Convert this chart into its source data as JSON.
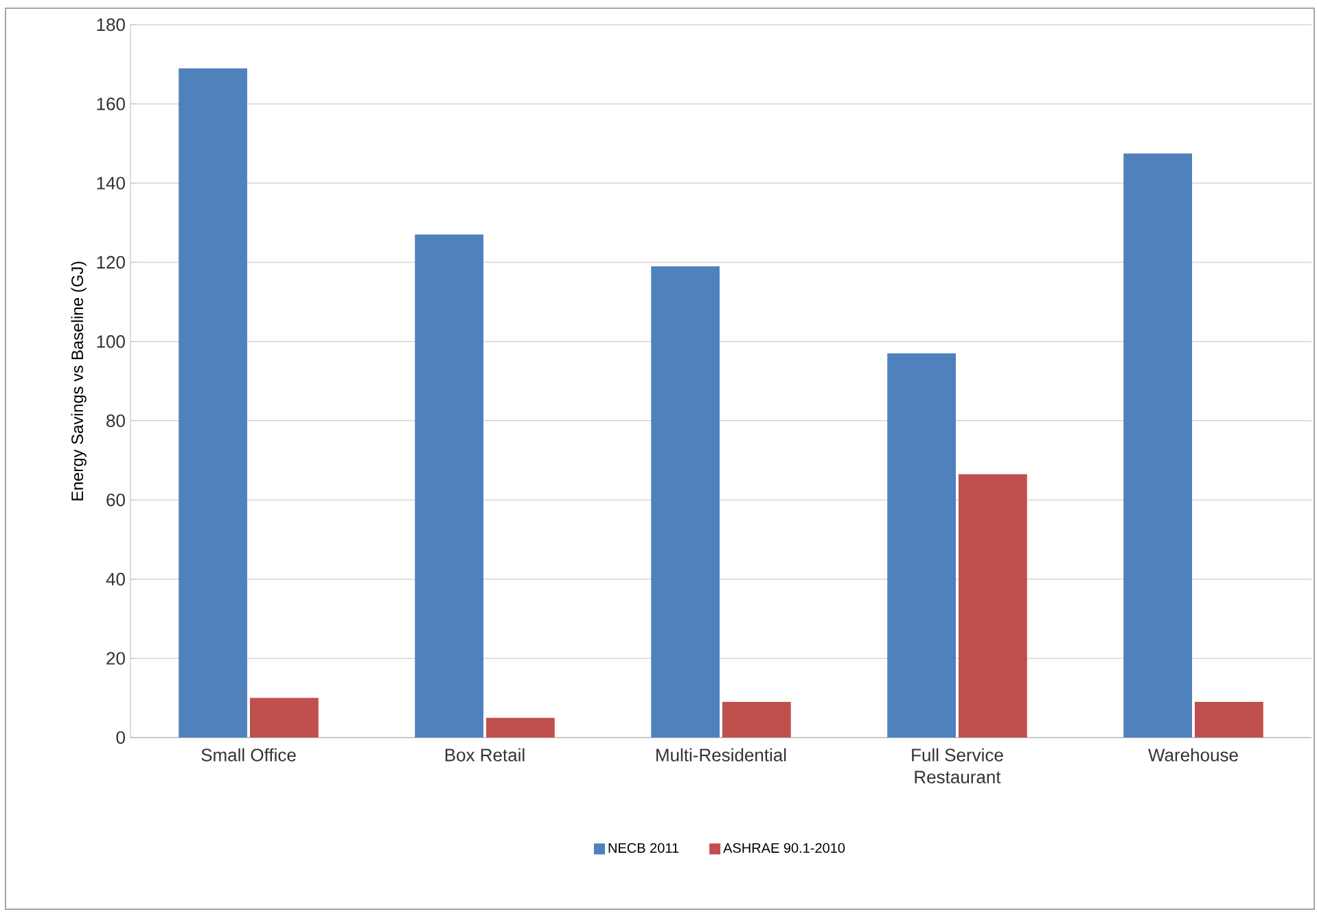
{
  "chart_data": {
    "type": "bar",
    "ylabel": "Energy Savings vs Baseline (GJ)",
    "categories": [
      "Small Office",
      "Box Retail",
      "Multi-Residential",
      "Full Service Restaurant",
      "Warehouse"
    ],
    "series": [
      {
        "name": "NECB 2011",
        "color": "#4f81bd",
        "values": [
          169,
          127,
          119,
          97,
          147.5
        ]
      },
      {
        "name": "ASHRAE 90.1-2010",
        "color": "#c0504d",
        "values": [
          10,
          5,
          9,
          66.5,
          9
        ]
      }
    ],
    "ylim": [
      0,
      180
    ],
    "yticks": [
      0,
      20,
      40,
      60,
      80,
      100,
      120,
      140,
      160,
      180
    ],
    "grid": "y",
    "legend": "bottom"
  }
}
